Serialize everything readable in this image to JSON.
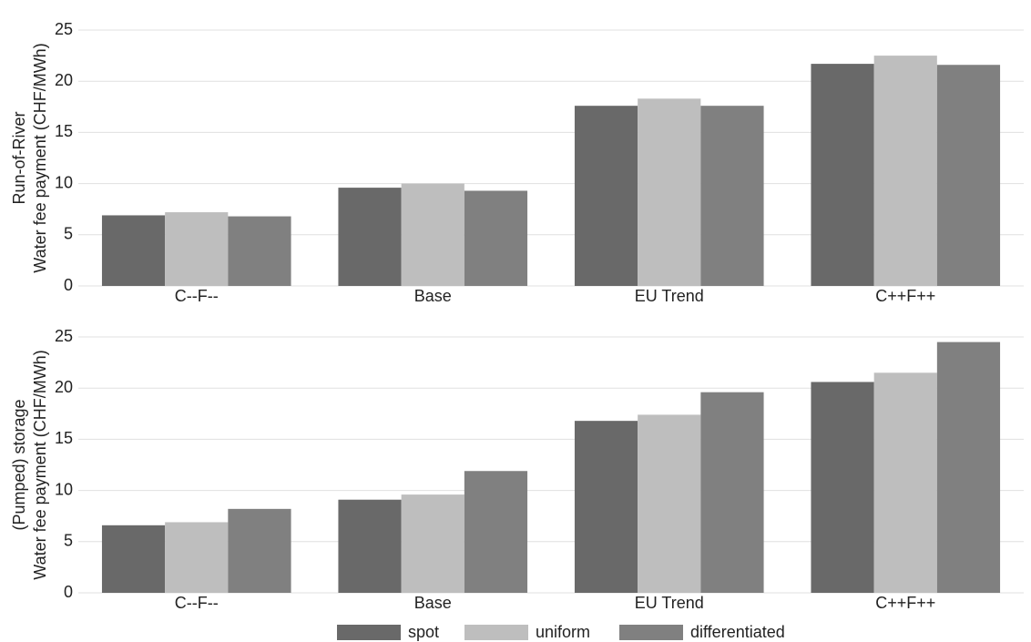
{
  "chart_data": [
    {
      "type": "bar",
      "y_label": [
        "Run-of-River",
        "Water fee payment (CHF/MWh)"
      ],
      "categories": [
        "C--F--",
        "Base",
        "EU Trend",
        "C++F++"
      ],
      "series": [
        {
          "name": "spot",
          "color": "#696969",
          "values": [
            6.9,
            9.6,
            17.6,
            21.7
          ]
        },
        {
          "name": "uniform",
          "color": "#bebebe",
          "values": [
            7.2,
            10.0,
            18.3,
            22.5
          ]
        },
        {
          "name": "differentiated",
          "color": "#808080",
          "values": [
            6.8,
            9.3,
            17.6,
            21.6
          ]
        }
      ],
      "ylim": [
        0,
        25
      ],
      "yticks": [
        0,
        5,
        10,
        15,
        20,
        25
      ],
      "grid": true,
      "legend": "bottom"
    },
    {
      "type": "bar",
      "y_label": [
        "(Pumped) storage",
        "Water fee payment (CHF/MWh)"
      ],
      "categories": [
        "C--F--",
        "Base",
        "EU Trend",
        "C++F++"
      ],
      "series": [
        {
          "name": "spot",
          "color": "#696969",
          "values": [
            6.6,
            9.1,
            16.8,
            20.6
          ]
        },
        {
          "name": "uniform",
          "color": "#bebebe",
          "values": [
            6.9,
            9.6,
            17.4,
            21.5
          ]
        },
        {
          "name": "differentiated",
          "color": "#808080",
          "values": [
            8.2,
            11.9,
            19.6,
            24.5
          ]
        }
      ],
      "ylim": [
        0,
        25
      ],
      "yticks": [
        0,
        5,
        10,
        15,
        20,
        25
      ],
      "grid": true
    }
  ]
}
